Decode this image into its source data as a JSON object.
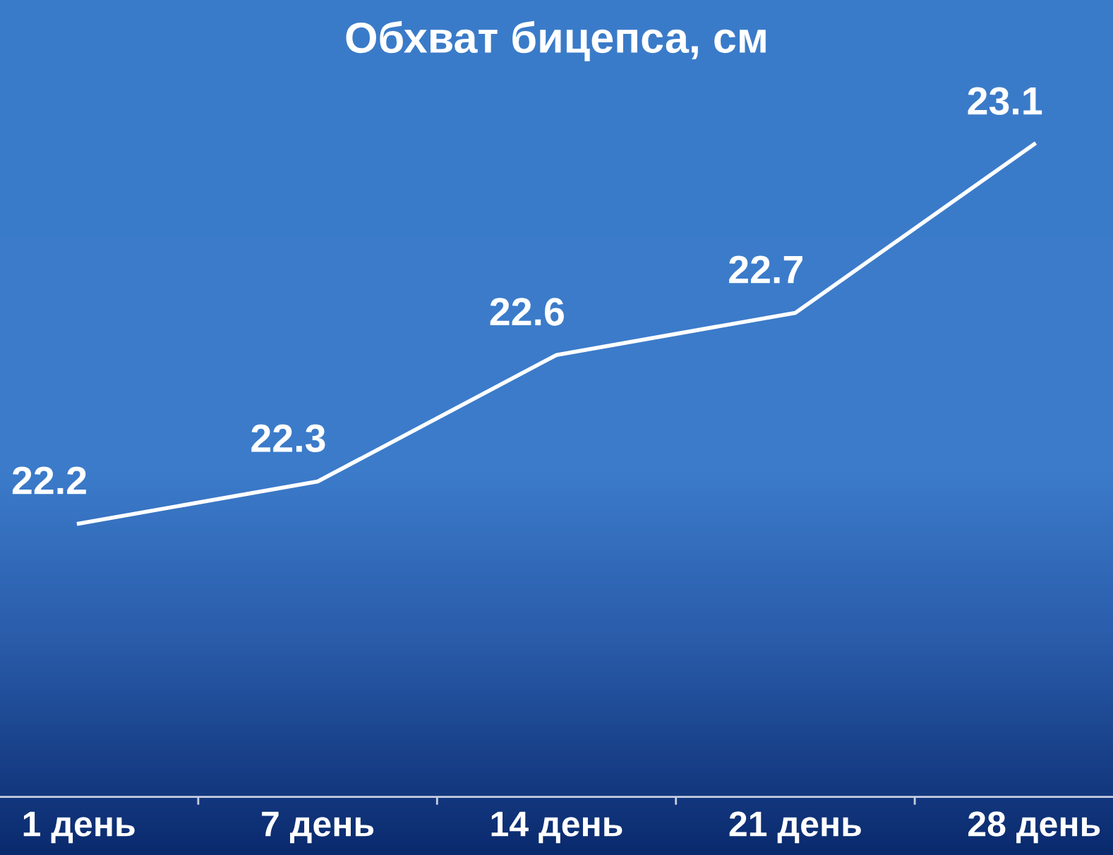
{
  "chart_data": {
    "type": "line",
    "title": "Обхват бицепса, см",
    "categories": [
      "1 день",
      "7 день",
      "14 день",
      "21 день",
      "28 день"
    ],
    "series": [
      {
        "color": "#ffffff",
        "values": [
          22.2,
          22.3,
          22.6,
          22.7,
          23.1
        ]
      }
    ],
    "data_labels": true,
    "grid": false,
    "legend": false,
    "marker": "none",
    "line_style": "solid",
    "tick_labels": "x"
  }
}
